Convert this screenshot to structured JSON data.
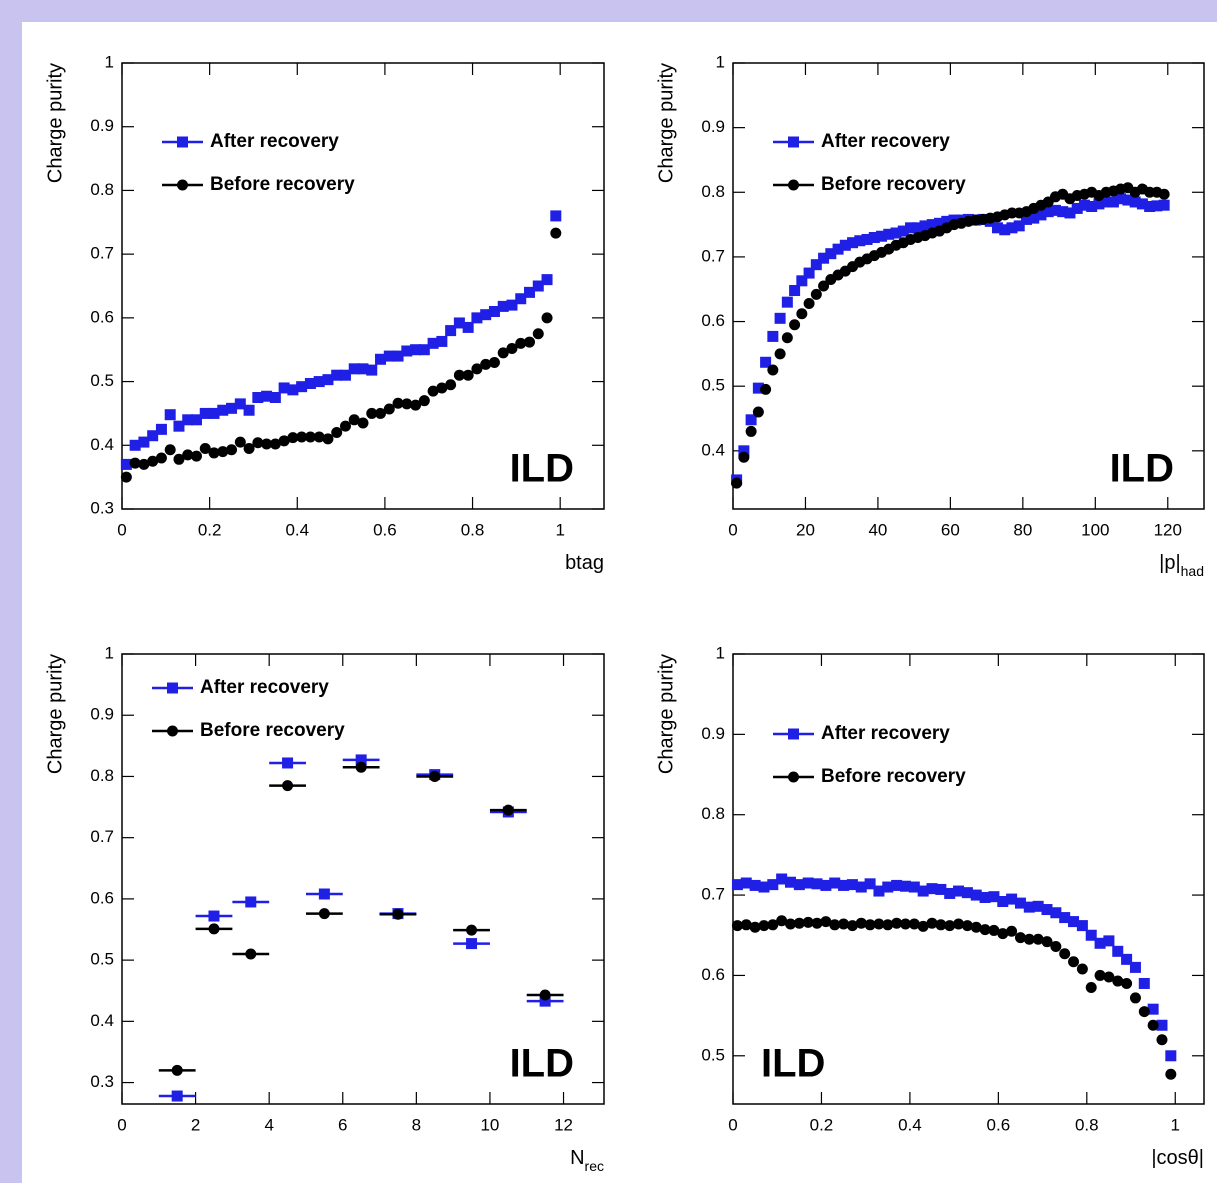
{
  "chart_data": [
    {
      "type": "scatter",
      "xlabel": "btag",
      "ylabel": "Charge purity",
      "annotation": "ILD",
      "annotation_corner": "lower right",
      "legend": "upper left",
      "xlim": [
        0,
        1.1
      ],
      "ylim": [
        0.3,
        1
      ],
      "xticks": [
        0,
        0.2,
        0.4,
        0.6,
        0.8,
        1
      ],
      "yticks": [
        0.3,
        0.4,
        0.5,
        0.6,
        0.7,
        0.8,
        0.9,
        1
      ],
      "x": [
        0.01,
        0.03,
        0.05,
        0.07,
        0.09,
        0.11,
        0.13,
        0.15,
        0.17,
        0.19,
        0.21,
        0.23,
        0.25,
        0.27,
        0.29,
        0.31,
        0.33,
        0.35,
        0.37,
        0.39,
        0.41,
        0.43,
        0.45,
        0.47,
        0.49,
        0.51,
        0.53,
        0.55,
        0.57,
        0.59,
        0.61,
        0.63,
        0.65,
        0.67,
        0.69,
        0.71,
        0.73,
        0.75,
        0.77,
        0.79,
        0.81,
        0.83,
        0.85,
        0.87,
        0.89,
        0.91,
        0.93,
        0.95,
        0.97,
        0.99
      ],
      "series": [
        {
          "name": "After recovery",
          "color": "#1f1fe6",
          "marker": "square",
          "values": [
            0.37,
            0.4,
            0.405,
            0.415,
            0.425,
            0.448,
            0.43,
            0.44,
            0.44,
            0.45,
            0.45,
            0.455,
            0.458,
            0.465,
            0.455,
            0.475,
            0.477,
            0.475,
            0.49,
            0.487,
            0.492,
            0.497,
            0.5,
            0.503,
            0.51,
            0.51,
            0.52,
            0.52,
            0.518,
            0.535,
            0.54,
            0.54,
            0.548,
            0.55,
            0.55,
            0.56,
            0.563,
            0.58,
            0.592,
            0.585,
            0.6,
            0.605,
            0.61,
            0.618,
            0.62,
            0.63,
            0.64,
            0.65,
            0.66,
            0.76
          ]
        },
        {
          "name": "Before recovery",
          "color": "#000000",
          "marker": "circle",
          "values": [
            0.35,
            0.372,
            0.37,
            0.375,
            0.38,
            0.393,
            0.378,
            0.385,
            0.383,
            0.395,
            0.388,
            0.39,
            0.393,
            0.405,
            0.395,
            0.404,
            0.402,
            0.402,
            0.407,
            0.412,
            0.413,
            0.413,
            0.413,
            0.41,
            0.42,
            0.43,
            0.44,
            0.435,
            0.45,
            0.45,
            0.457,
            0.466,
            0.465,
            0.463,
            0.47,
            0.485,
            0.49,
            0.495,
            0.51,
            0.51,
            0.52,
            0.527,
            0.53,
            0.545,
            0.552,
            0.56,
            0.562,
            0.575,
            0.6,
            0.733
          ]
        }
      ]
    },
    {
      "type": "scatter",
      "xlabel": "|p|",
      "xlabel_sub": "had",
      "ylabel": "Charge purity",
      "annotation": "ILD",
      "annotation_corner": "lower right",
      "legend": "upper left",
      "xlim": [
        0,
        130
      ],
      "ylim": [
        0.31,
        1
      ],
      "xticks": [
        0,
        20,
        40,
        60,
        80,
        100,
        120
      ],
      "yticks": [
        0.4,
        0.5,
        0.6,
        0.7,
        0.8,
        0.9,
        1
      ],
      "x": [
        1,
        3,
        5,
        7,
        9,
        11,
        13,
        15,
        17,
        19,
        21,
        23,
        25,
        27,
        29,
        31,
        33,
        35,
        37,
        39,
        41,
        43,
        45,
        47,
        49,
        51,
        53,
        55,
        57,
        59,
        61,
        63,
        65,
        67,
        69,
        71,
        73,
        75,
        77,
        79,
        81,
        83,
        85,
        87,
        89,
        91,
        93,
        95,
        97,
        99,
        101,
        103,
        105,
        107,
        109,
        111,
        113,
        115,
        117,
        119
      ],
      "series": [
        {
          "name": "After recovery",
          "color": "#1f1fe6",
          "marker": "square",
          "values": [
            0.355,
            0.4,
            0.448,
            0.497,
            0.537,
            0.577,
            0.605,
            0.63,
            0.648,
            0.663,
            0.675,
            0.688,
            0.698,
            0.705,
            0.712,
            0.718,
            0.722,
            0.725,
            0.727,
            0.73,
            0.732,
            0.735,
            0.737,
            0.74,
            0.745,
            0.745,
            0.748,
            0.75,
            0.752,
            0.755,
            0.757,
            0.757,
            0.758,
            0.757,
            0.758,
            0.755,
            0.745,
            0.742,
            0.745,
            0.748,
            0.758,
            0.76,
            0.765,
            0.77,
            0.772,
            0.77,
            0.768,
            0.775,
            0.78,
            0.778,
            0.782,
            0.785,
            0.785,
            0.79,
            0.788,
            0.785,
            0.782,
            0.778,
            0.779,
            0.78
          ]
        },
        {
          "name": "Before recovery",
          "color": "#000000",
          "marker": "circle",
          "values": [
            0.35,
            0.39,
            0.43,
            0.46,
            0.495,
            0.525,
            0.55,
            0.575,
            0.595,
            0.612,
            0.628,
            0.642,
            0.655,
            0.665,
            0.672,
            0.678,
            0.685,
            0.692,
            0.697,
            0.702,
            0.707,
            0.712,
            0.718,
            0.722,
            0.727,
            0.73,
            0.733,
            0.737,
            0.74,
            0.745,
            0.75,
            0.752,
            0.755,
            0.757,
            0.758,
            0.76,
            0.762,
            0.765,
            0.768,
            0.768,
            0.77,
            0.775,
            0.78,
            0.785,
            0.793,
            0.797,
            0.79,
            0.795,
            0.797,
            0.8,
            0.795,
            0.8,
            0.802,
            0.805,
            0.807,
            0.8,
            0.805,
            0.8,
            0.8,
            0.797
          ]
        }
      ]
    },
    {
      "type": "scatter",
      "xlabel": "N",
      "xlabel_sub": "rec",
      "ylabel": "Charge purity",
      "annotation": "ILD",
      "annotation_corner": "lower right",
      "legend": "upper left",
      "xlim": [
        0,
        13.1
      ],
      "ylim": [
        0.265,
        1
      ],
      "xticks": [
        0,
        2,
        4,
        6,
        8,
        10,
        12
      ],
      "yticks": [
        0.3,
        0.4,
        0.5,
        0.6,
        0.7,
        0.8,
        0.9,
        1
      ],
      "x": [
        1.5,
        2.5,
        3.5,
        4.5,
        5.5,
        6.5,
        7.5,
        8.5,
        9.5,
        10.5,
        11.5
      ],
      "xerr": 0.5,
      "series": [
        {
          "name": "After recovery",
          "color": "#1f1fe6",
          "marker": "square",
          "values": [
            0.278,
            0.572,
            0.595,
            0.822,
            0.608,
            0.827,
            0.576,
            0.803,
            0.527,
            0.742,
            0.433
          ]
        },
        {
          "name": "Before recovery",
          "color": "#000000",
          "marker": "circle",
          "values": [
            0.32,
            0.551,
            0.51,
            0.785,
            0.576,
            0.815,
            0.575,
            0.8,
            0.549,
            0.745,
            0.443
          ]
        }
      ]
    },
    {
      "type": "scatter",
      "xlabel": "|cosθ|",
      "ylabel": "Charge purity",
      "annotation": "ILD",
      "annotation_corner": "lower left",
      "legend": "upper left",
      "xlim": [
        0,
        1.065
      ],
      "ylim": [
        0.44,
        1
      ],
      "xticks": [
        0,
        0.2,
        0.4,
        0.6,
        0.8,
        1
      ],
      "yticks": [
        0.5,
        0.6,
        0.7,
        0.8,
        0.9,
        1
      ],
      "x": [
        0.01,
        0.03,
        0.05,
        0.07,
        0.09,
        0.11,
        0.13,
        0.15,
        0.17,
        0.19,
        0.21,
        0.23,
        0.25,
        0.27,
        0.29,
        0.31,
        0.33,
        0.35,
        0.37,
        0.39,
        0.41,
        0.43,
        0.45,
        0.47,
        0.49,
        0.51,
        0.53,
        0.55,
        0.57,
        0.59,
        0.61,
        0.63,
        0.65,
        0.67,
        0.69,
        0.71,
        0.73,
        0.75,
        0.77,
        0.79,
        0.81,
        0.83,
        0.85,
        0.87,
        0.89,
        0.91,
        0.93,
        0.95,
        0.97,
        0.99
      ],
      "series": [
        {
          "name": "After recovery",
          "color": "#1f1fe6",
          "marker": "square",
          "values": [
            0.713,
            0.715,
            0.712,
            0.71,
            0.713,
            0.72,
            0.716,
            0.713,
            0.715,
            0.714,
            0.712,
            0.715,
            0.712,
            0.713,
            0.71,
            0.714,
            0.705,
            0.71,
            0.712,
            0.711,
            0.71,
            0.705,
            0.708,
            0.707,
            0.702,
            0.705,
            0.703,
            0.7,
            0.697,
            0.698,
            0.692,
            0.695,
            0.69,
            0.685,
            0.686,
            0.682,
            0.678,
            0.672,
            0.667,
            0.662,
            0.65,
            0.64,
            0.643,
            0.63,
            0.62,
            0.61,
            0.59,
            0.558,
            0.538,
            0.5
          ]
        },
        {
          "name": "Before recovery",
          "color": "#000000",
          "marker": "circle",
          "values": [
            0.662,
            0.663,
            0.66,
            0.662,
            0.663,
            0.668,
            0.664,
            0.665,
            0.666,
            0.665,
            0.667,
            0.663,
            0.664,
            0.662,
            0.665,
            0.663,
            0.664,
            0.663,
            0.665,
            0.664,
            0.664,
            0.661,
            0.665,
            0.663,
            0.662,
            0.664,
            0.662,
            0.66,
            0.657,
            0.656,
            0.652,
            0.655,
            0.647,
            0.645,
            0.645,
            0.642,
            0.636,
            0.627,
            0.617,
            0.608,
            0.585,
            0.6,
            0.598,
            0.593,
            0.59,
            0.572,
            0.555,
            0.538,
            0.52,
            0.477
          ]
        }
      ]
    }
  ]
}
